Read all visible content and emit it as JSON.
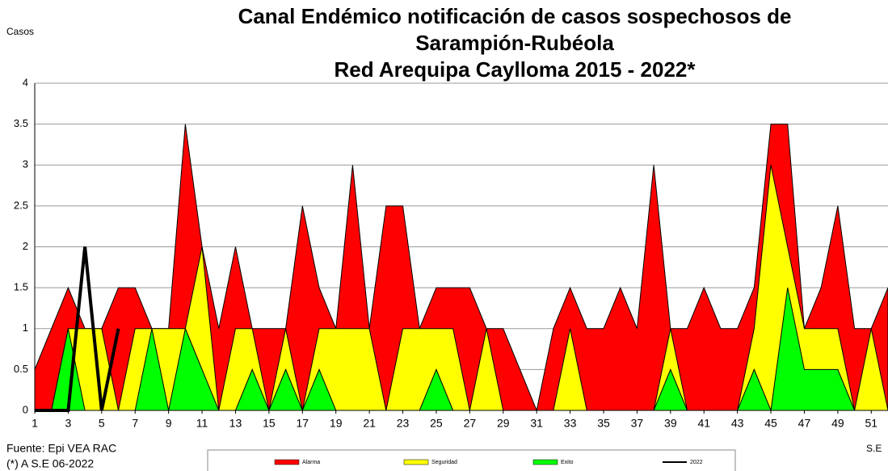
{
  "chart_data": {
    "type": "area",
    "title": "Canal Endémico notificación de casos sospechosos de",
    "subtitle": "Sarampión-Rubéola",
    "subtitle2": "Red Arequipa Caylloma 2015 - 2022*",
    "y_label": "Casos",
    "x_label": "S.E",
    "source": "Fuente:  Epi VEA RAC",
    "note": "(*) A S.E 06-2022",
    "x": [
      1,
      2,
      3,
      4,
      5,
      6,
      7,
      8,
      9,
      10,
      11,
      12,
      13,
      14,
      15,
      16,
      17,
      18,
      19,
      20,
      21,
      22,
      23,
      24,
      25,
      26,
      27,
      28,
      29,
      30,
      31,
      32,
      33,
      34,
      35,
      36,
      37,
      38,
      39,
      40,
      41,
      42,
      43,
      44,
      45,
      46,
      47,
      48,
      49,
      50,
      51,
      52
    ],
    "xlim": [
      1,
      52
    ],
    "xticks": [
      1,
      3,
      5,
      7,
      9,
      11,
      13,
      15,
      17,
      19,
      21,
      23,
      25,
      27,
      29,
      31,
      33,
      35,
      37,
      39,
      41,
      43,
      45,
      47,
      49,
      51
    ],
    "ylim": [
      0,
      4
    ],
    "yticks": [
      0,
      0.5,
      1,
      1.5,
      2,
      2.5,
      3,
      3.5,
      4
    ],
    "grid": true,
    "series": [
      {
        "name": "Alarma",
        "color": "#ff0000",
        "values": [
          0.5,
          1,
          1.5,
          1,
          1,
          1.5,
          1.5,
          1,
          1,
          3.5,
          2,
          1,
          2,
          1,
          1,
          1,
          2.5,
          1.5,
          1,
          3,
          1,
          2.5,
          2.5,
          1,
          1.5,
          1.5,
          1.5,
          1,
          1,
          0.5,
          0,
          1,
          1.5,
          1,
          1,
          1.5,
          1,
          3,
          1,
          1,
          1.5,
          1,
          1,
          1.5,
          3.5,
          3.5,
          1,
          1.5,
          2.5,
          1,
          1,
          1.5
        ]
      },
      {
        "name": "Seguridad",
        "color": "#ffff00",
        "values": [
          0,
          0,
          1,
          1,
          1,
          0,
          1,
          1,
          1,
          1,
          2,
          0,
          1,
          1,
          0,
          1,
          0,
          1,
          1,
          1,
          1,
          0,
          1,
          1,
          1,
          1,
          0,
          1,
          0,
          0,
          0,
          0,
          1,
          0,
          0,
          0,
          0,
          0,
          1,
          0,
          0,
          0,
          0,
          1,
          3,
          2,
          1,
          1,
          1,
          0,
          1,
          0
        ]
      },
      {
        "name": "Exito",
        "color": "#00ff00",
        "values": [
          0,
          0,
          1,
          0,
          0,
          0,
          0,
          1,
          0,
          1,
          0.5,
          0,
          0,
          0.5,
          0,
          0.5,
          0,
          0.5,
          0,
          0,
          0,
          0,
          0,
          0,
          0.5,
          0,
          0,
          0,
          0,
          0,
          0,
          0,
          0,
          0,
          0,
          0,
          0,
          0,
          0.5,
          0,
          0,
          0,
          0,
          0.5,
          0,
          1.5,
          0.5,
          0.5,
          0.5,
          0,
          0,
          0
        ]
      },
      {
        "name": "2022",
        "color": "#000000",
        "line": true,
        "values": [
          0,
          0,
          0,
          2,
          0,
          1,
          null,
          null,
          null,
          null,
          null,
          null,
          null,
          null,
          null,
          null,
          null,
          null,
          null,
          null,
          null,
          null,
          null,
          null,
          null,
          null,
          null,
          null,
          null,
          null,
          null,
          null,
          null,
          null,
          null,
          null,
          null,
          null,
          null,
          null,
          null,
          null,
          null,
          null,
          null,
          null,
          null,
          null,
          null,
          null,
          null,
          null
        ]
      }
    ]
  }
}
